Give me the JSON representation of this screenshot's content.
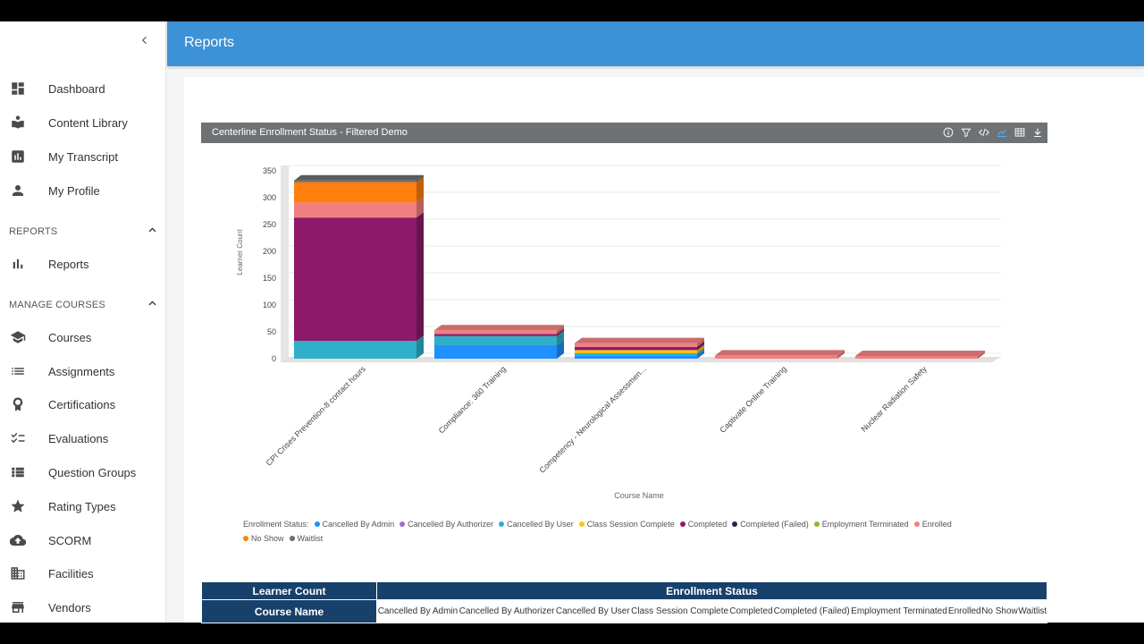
{
  "sidebar": {
    "collapse_icon": "chevron-left-icon",
    "items": [
      {
        "label": "Dashboard",
        "icon": "dashboard-icon"
      },
      {
        "label": "Content Library",
        "icon": "book-icon"
      },
      {
        "label": "My Transcript",
        "icon": "transcript-chart-icon"
      },
      {
        "label": "My Profile",
        "icon": "person-icon"
      }
    ],
    "reports_header": "REPORTS",
    "reports_items": [
      {
        "label": "Reports",
        "icon": "bar-chart-icon"
      }
    ],
    "manage_header": "MANAGE COURSES",
    "manage_items": [
      {
        "label": "Courses",
        "icon": "graduation-cap-icon"
      },
      {
        "label": "Assignments",
        "icon": "list-icon"
      },
      {
        "label": "Certifications",
        "icon": "badge-icon"
      },
      {
        "label": "Evaluations",
        "icon": "checklist-icon"
      },
      {
        "label": "Question Groups",
        "icon": "list-bullets-icon"
      },
      {
        "label": "Rating Types",
        "icon": "star-icon"
      },
      {
        "label": "SCORM",
        "icon": "cloud-upload-icon"
      },
      {
        "label": "Facilities",
        "icon": "building-icon"
      },
      {
        "label": "Vendors",
        "icon": "store-icon"
      }
    ]
  },
  "header": {
    "title": "Reports"
  },
  "chart_panel": {
    "title": "Centerline Enrollment Status - Filtered Demo",
    "tools": [
      "info-icon",
      "filter-icon",
      "code-icon",
      "chart-view-icon",
      "table-view-icon",
      "download-icon"
    ]
  },
  "chart_data": {
    "type": "bar",
    "stacked": true,
    "three_d": true,
    "xlabel": "Course Name",
    "ylabel": "Learner Count",
    "ylim": [
      0,
      350
    ],
    "yticks": [
      0,
      50,
      100,
      150,
      200,
      250,
      300,
      350
    ],
    "categories": [
      "CPI  Crises Prevention-8 contact hours",
      "Compliance: 360 Training",
      "Competency - Neurological Assessmen...",
      "Captivate Online Training",
      "Nuclear Radiation Safety"
    ],
    "series": [
      {
        "name": "Cancelled By Admin",
        "color": "#1e90ff",
        "values": [
          0,
          25,
          6,
          0,
          0
        ]
      },
      {
        "name": "Cancelled By Authorizer",
        "color": "#9b6fd6",
        "values": [
          0,
          0,
          0,
          0,
          0
        ]
      },
      {
        "name": "Cancelled By User",
        "color": "#2fb0c8",
        "values": [
          33,
          17,
          4,
          0,
          0
        ]
      },
      {
        "name": "Class Session Complete",
        "color": "#f5c518",
        "values": [
          0,
          0,
          6,
          0,
          0
        ]
      },
      {
        "name": "Completed",
        "color": "#8b1a6b",
        "values": [
          230,
          4,
          6,
          0,
          0
        ]
      },
      {
        "name": "Completed (Failed)",
        "color": "#1a2b4a",
        "values": [
          0,
          0,
          0,
          0,
          0
        ]
      },
      {
        "name": "Employment Terminated",
        "color": "#8fb83a",
        "values": [
          0,
          0,
          0,
          0,
          0
        ]
      },
      {
        "name": "Enrolled",
        "color": "#f08080",
        "values": [
          28,
          7,
          7,
          6,
          5
        ]
      },
      {
        "name": "No Show",
        "color": "#ff7f0e",
        "values": [
          38,
          0,
          0,
          0,
          0
        ]
      },
      {
        "name": "Waitlist",
        "color": "#6b6b6b",
        "values": [
          3,
          0,
          0,
          0,
          0
        ]
      }
    ],
    "legend_title": "Enrollment Status:",
    "legend_position": "bottom"
  },
  "table": {
    "header_left_top": "Learner Count",
    "header_left_bottom": "Course Name",
    "header_group": "Enrollment Status",
    "columns": [
      "Cancelled By Admin",
      "Cancelled By Authorizer",
      "Cancelled By User",
      "Class Session Complete",
      "Completed",
      "Completed (Failed)",
      "Employment Terminated",
      "Enrolled",
      "No Show",
      "Waitlist"
    ]
  }
}
